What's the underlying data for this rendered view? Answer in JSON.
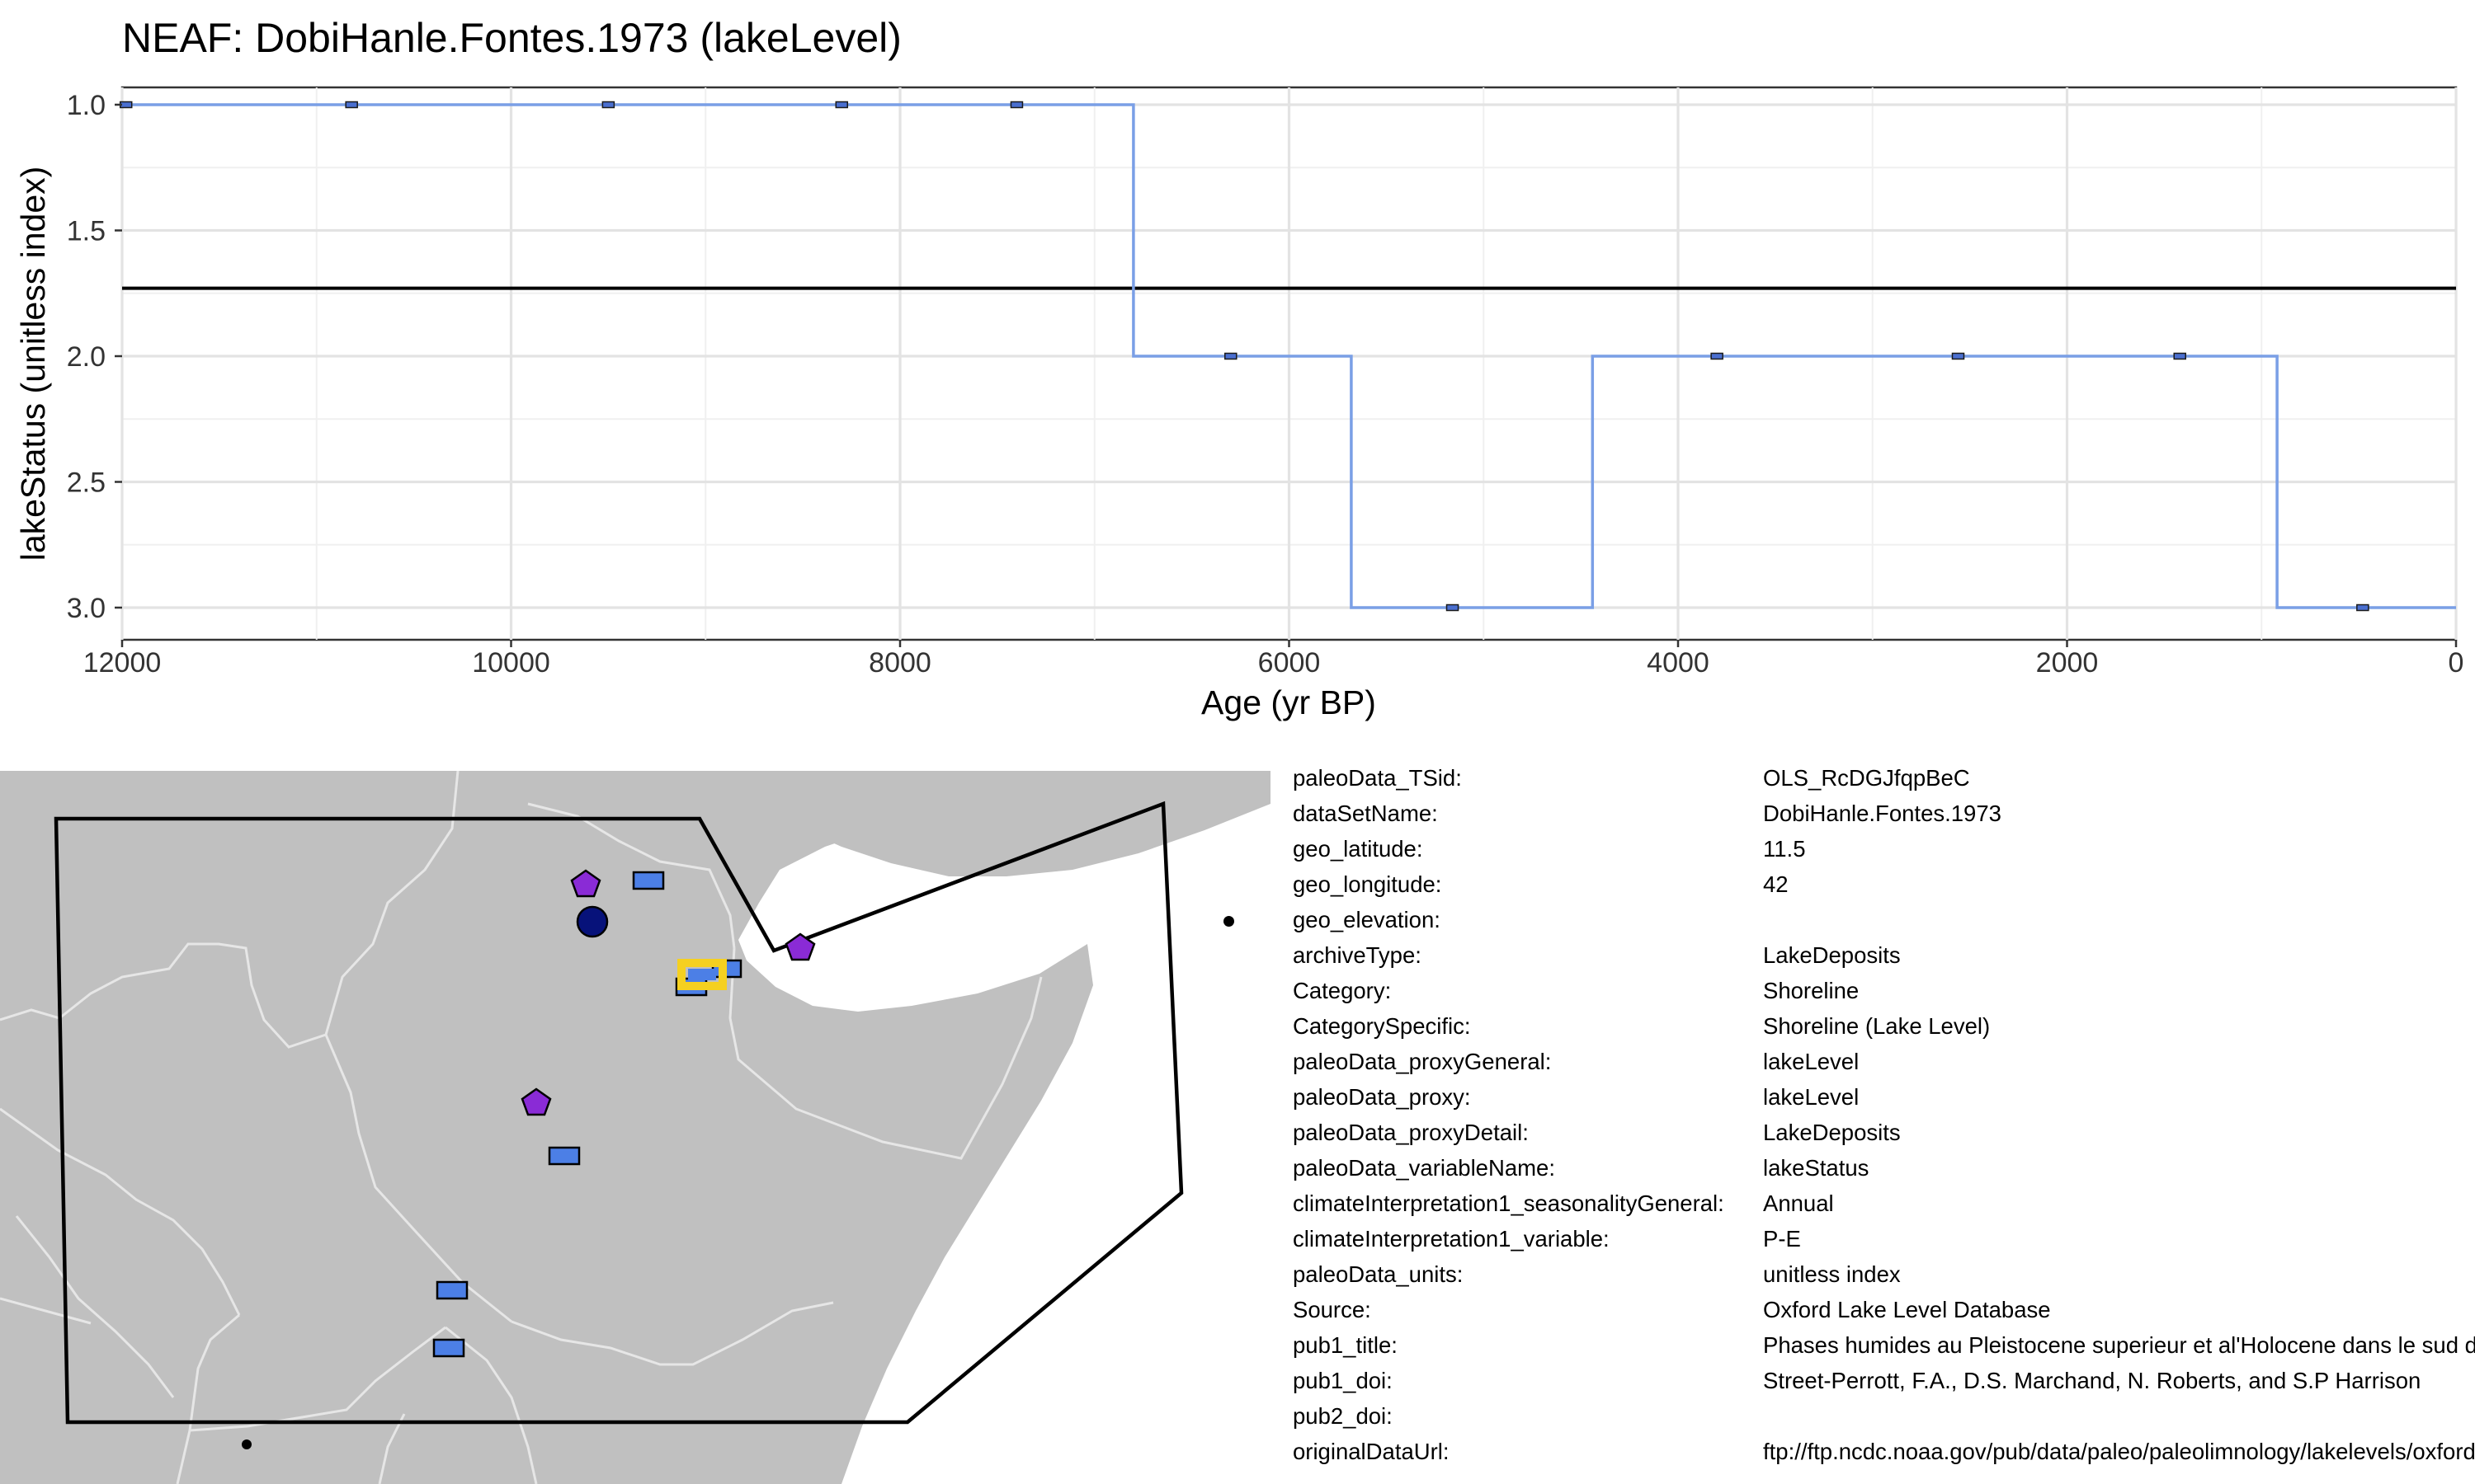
{
  "chart_data": {
    "type": "line",
    "title": "NEAF: DobiHanle.Fontes.1973 (lakeLevel)",
    "xlabel": "Age (yr BP)",
    "ylabel": "lakeStatus (unitless index)",
    "xlim": [
      12000,
      0
    ],
    "ylim": [
      1.0,
      3.0
    ],
    "x_reversed": true,
    "y_reversed": true,
    "grid": true,
    "x_ticks": [
      12000,
      10000,
      8000,
      6000,
      4000,
      2000,
      0
    ],
    "y_ticks": [
      1.0,
      1.5,
      2.0,
      2.5,
      3.0
    ],
    "step_path": [
      {
        "x": 12000,
        "y": 1.0
      },
      {
        "x": 6800,
        "y": 1.0
      },
      {
        "x": 6800,
        "y": 2.0
      },
      {
        "x": 5680,
        "y": 2.0
      },
      {
        "x": 5680,
        "y": 3.0
      },
      {
        "x": 4440,
        "y": 3.0
      },
      {
        "x": 4440,
        "y": 2.0
      },
      {
        "x": 920,
        "y": 2.0
      },
      {
        "x": 920,
        "y": 3.0
      },
      {
        "x": 0,
        "y": 3.0
      }
    ],
    "points": [
      {
        "x": 11980,
        "y": 1.0
      },
      {
        "x": 10820,
        "y": 1.0
      },
      {
        "x": 9500,
        "y": 1.0
      },
      {
        "x": 8300,
        "y": 1.0
      },
      {
        "x": 7400,
        "y": 1.0
      },
      {
        "x": 6300,
        "y": 2.0
      },
      {
        "x": 5160,
        "y": 3.0
      },
      {
        "x": 3800,
        "y": 2.0
      },
      {
        "x": 2560,
        "y": 2.0
      },
      {
        "x": 1420,
        "y": 2.0
      },
      {
        "x": 480,
        "y": 3.0
      }
    ],
    "reference_line_y": 1.73,
    "colors": {
      "line": "#7a9fe6",
      "marker_fill": "#4a6fd0",
      "reference": "#000000"
    }
  },
  "map": {
    "colors": {
      "land": "#c0c0c0",
      "water": "#ffffff",
      "borders": "#e8e8e8",
      "rect_marker": "#4c7fe6",
      "pentagon_marker": "#8a2bd6",
      "circle_marker": "#07127a",
      "highlight": "#f5d020"
    }
  },
  "metadata": [
    {
      "key": "paleoData_TSid:",
      "value": "OLS_RcDGJfqpBeC"
    },
    {
      "key": "dataSetName:",
      "value": "DobiHanle.Fontes.1973"
    },
    {
      "key": "geo_latitude:",
      "value": "11.5"
    },
    {
      "key": "geo_longitude:",
      "value": "42"
    },
    {
      "key": "geo_elevation:",
      "value": ""
    },
    {
      "key": "archiveType:",
      "value": "LakeDeposits"
    },
    {
      "key": "Category:",
      "value": "Shoreline"
    },
    {
      "key": "CategorySpecific:",
      "value": "Shoreline (Lake Level)"
    },
    {
      "key": "paleoData_proxyGeneral:",
      "value": "lakeLevel"
    },
    {
      "key": "paleoData_proxy:",
      "value": "lakeLevel"
    },
    {
      "key": "paleoData_proxyDetail:",
      "value": "LakeDeposits"
    },
    {
      "key": "paleoData_variableName:",
      "value": "lakeStatus"
    },
    {
      "key": "climateInterpretation1_seasonalityGeneral:",
      "value": "Annual"
    },
    {
      "key": "climateInterpretation1_variable:",
      "value": "P-E"
    },
    {
      "key": "paleoData_units:",
      "value": "unitless index"
    },
    {
      "key": "Source:",
      "value": "Oxford Lake Level Database"
    },
    {
      "key": "pub1_title:",
      "value": "Phases humides au Pleistocene superieur et al'Holocene dans le sud de l'Afar (Ethiopie)"
    },
    {
      "key": "pub1_doi:",
      "value": "Street-Perrott, F.A., D.S. Marchand, N. Roberts, and S.P Harrison"
    },
    {
      "key": "pub2_doi:",
      "value": ""
    },
    {
      "key": "originalDataUrl:",
      "value": "ftp://ftp.ncdc.noaa.gov/pub/data/paleo/paleolimnology/lakelevels/oxford/"
    }
  ]
}
